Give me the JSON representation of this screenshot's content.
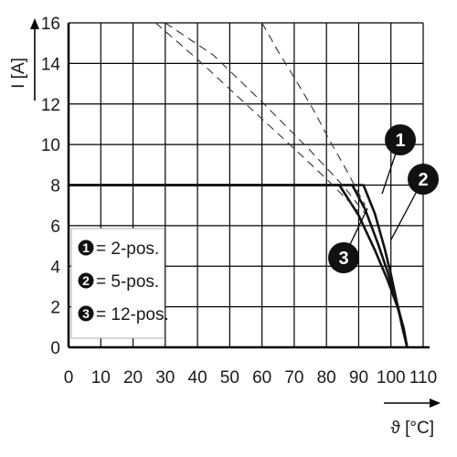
{
  "chart_data": {
    "type": "line",
    "xlabel": "ϑ [°C]",
    "ylabel": "I [A]",
    "xlim": [
      0,
      110
    ],
    "ylim": [
      0,
      16
    ],
    "x_ticks": [
      "0",
      "10",
      "20",
      "30",
      "40",
      "50",
      "60",
      "70",
      "80",
      "90",
      "100",
      "110"
    ],
    "y_ticks": [
      "0",
      "2",
      "4",
      "6",
      "8",
      "10",
      "12",
      "14",
      "16"
    ],
    "grid": true,
    "legend": {
      "placement": "bottom-left",
      "entries": [
        {
          "badge": "1",
          "label": "= 2-pos."
        },
        {
          "badge": "2",
          "label": "= 5-pos."
        },
        {
          "badge": "3",
          "label": "= 12-pos."
        }
      ]
    },
    "series": [
      {
        "callout": "1",
        "style": "solid",
        "color": "#111111",
        "x": [
          0,
          91.5,
          95,
          98,
          100,
          102,
          103.5,
          105
        ],
        "y": [
          8,
          8,
          6.6,
          4.9,
          3.6,
          2.1,
          1.0,
          0
        ]
      },
      {
        "callout": "2",
        "style": "solid",
        "color": "#111111",
        "x": [
          0,
          88,
          92,
          96,
          99,
          102,
          104,
          105
        ],
        "y": [
          8,
          8,
          6.8,
          5.1,
          3.7,
          2.1,
          0.9,
          0
        ]
      },
      {
        "callout": "3",
        "style": "solid",
        "color": "#111111",
        "x": [
          0,
          84,
          90,
          95,
          99,
          102,
          104,
          105
        ],
        "y": [
          8,
          8,
          6.5,
          4.8,
          3.3,
          2.0,
          0.9,
          0
        ]
      },
      {
        "callout": "",
        "style": "dashed",
        "color": "#333333",
        "x": [
          30,
          45,
          60,
          75,
          85,
          92
        ],
        "y": [
          16,
          14.4,
          12.1,
          9.7,
          8.0,
          6.6
        ]
      },
      {
        "callout": "",
        "style": "dashed",
        "color": "#333333",
        "x": [
          27,
          40,
          55,
          70,
          80,
          90
        ],
        "y": [
          16,
          14.2,
          12.0,
          9.8,
          8.3,
          6.7
        ]
      },
      {
        "callout": "",
        "style": "dashed",
        "color": "#333333",
        "x": [
          60,
          65,
          70,
          76,
          81,
          86,
          92
        ],
        "y": [
          16,
          14.6,
          13.3,
          11.7,
          10.2,
          8.8,
          7.0
        ]
      }
    ]
  }
}
